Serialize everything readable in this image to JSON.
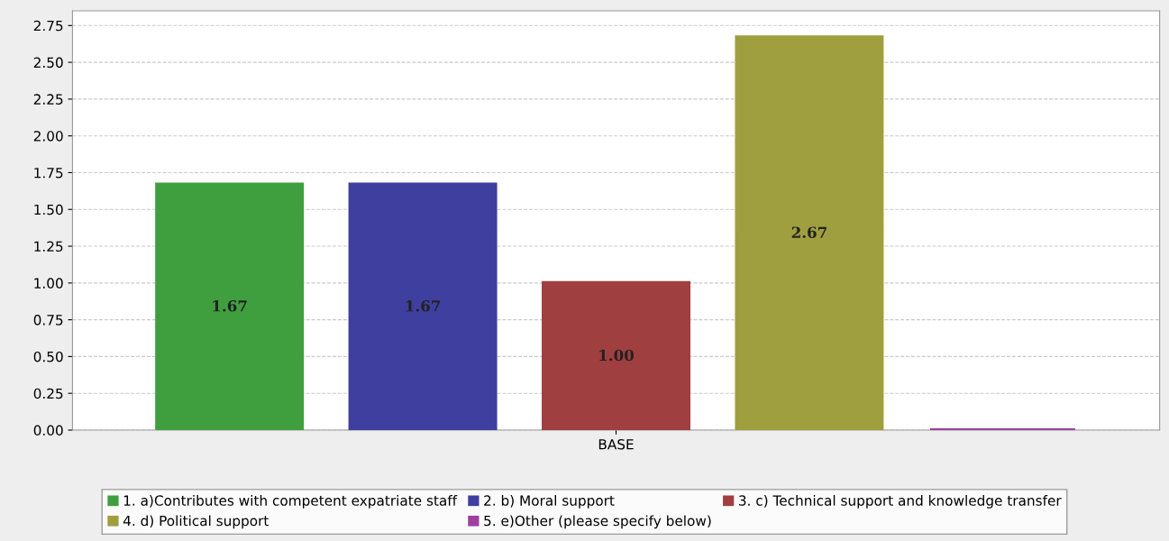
{
  "chart_data": {
    "type": "bar",
    "categories": [
      "BASE"
    ],
    "series": [
      {
        "name": "1. a)Contributes with competent expatriate staff",
        "color": "#3f9f3f",
        "values": [
          1.67
        ],
        "value_labels": [
          "1.67"
        ]
      },
      {
        "name": "2. b) Moral support",
        "color": "#3f3fa0",
        "values": [
          1.67
        ],
        "value_labels": [
          "1.67"
        ]
      },
      {
        "name": "3. c) Technical support and knowledge transfer",
        "color": "#a03f3f",
        "values": [
          1.0
        ],
        "value_labels": [
          "1.00"
        ]
      },
      {
        "name": "4. d) Political support",
        "color": "#9f9f3f",
        "values": [
          2.67
        ],
        "value_labels": [
          "2.67"
        ]
      },
      {
        "name": "5. e)Other (please specify below)",
        "color": "#9f3f9f",
        "values": [
          0
        ],
        "value_labels": [
          null
        ]
      }
    ],
    "ylim": [
      0,
      2.85
    ],
    "yticks": [
      {
        "value": 0,
        "label": "0.00"
      },
      {
        "value": 0.25,
        "label": "0.25"
      },
      {
        "value": 0.5,
        "label": "0.50"
      },
      {
        "value": 0.75,
        "label": "0.75"
      },
      {
        "value": 1.0,
        "label": "1.00"
      },
      {
        "value": 1.25,
        "label": "1.25"
      },
      {
        "value": 1.5,
        "label": "1.50"
      },
      {
        "value": 1.75,
        "label": "1.75"
      },
      {
        "value": 2.0,
        "label": "2.00"
      },
      {
        "value": 2.25,
        "label": "2.25"
      },
      {
        "value": 2.5,
        "label": "2.50"
      },
      {
        "value": 2.75,
        "label": "2.75"
      }
    ],
    "grid": "y",
    "legend": "bottom"
  }
}
